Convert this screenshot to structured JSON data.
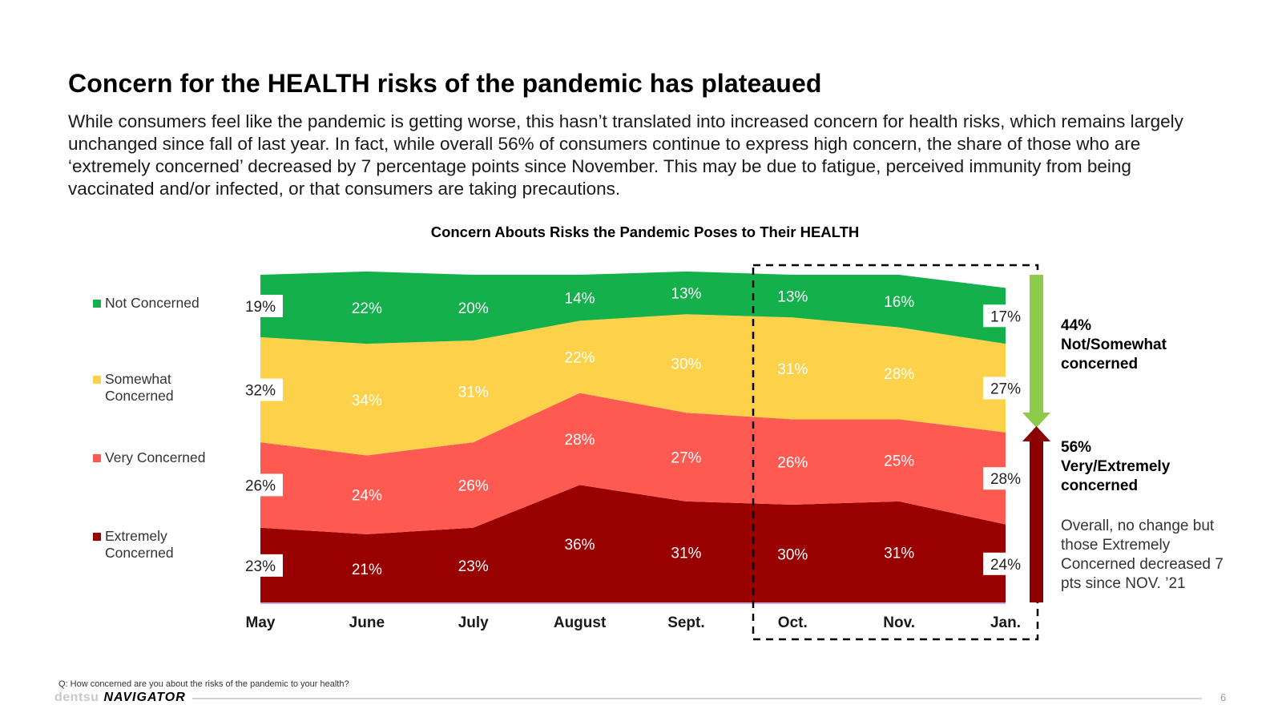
{
  "header": {
    "title": "Concern for the HEALTH risks of the pandemic has plateaued",
    "body": "While consumers feel like the pandemic is getting worse, this hasn’t translated into increased concern for health risks, which remains largely unchanged since fall of last year. In fact, while overall 56% of consumers continue to express high concern, the share of those who are ‘extremely concerned’ decreased by 7 percentage points since November. This may be due to fatigue, perceived immunity from being vaccinated and/or infected, or that consumers are taking precautions."
  },
  "chart_data": {
    "type": "area",
    "stacked": true,
    "title": "Concern Abouts Risks the Pandemic Poses to Their HEALTH",
    "categories": [
      "May",
      "June",
      "July",
      "August",
      "Sept.",
      "Oct.",
      "Nov.",
      "Jan."
    ],
    "series": [
      {
        "name": "Extremely Concerned",
        "color": "#990000",
        "values": [
          23,
          21,
          23,
          36,
          31,
          30,
          31,
          24
        ]
      },
      {
        "name": "Very Concerned",
        "color": "#ff5a52",
        "values": [
          26,
          24,
          26,
          28,
          27,
          26,
          25,
          28
        ]
      },
      {
        "name": "Somewhat Concerned",
        "color": "#fdd14a",
        "values": [
          32,
          34,
          31,
          22,
          30,
          31,
          28,
          27
        ]
      },
      {
        "name": "Not Concerned",
        "color": "#14b04c",
        "values": [
          19,
          22,
          20,
          14,
          13,
          13,
          16,
          17
        ]
      }
    ],
    "legend": [
      "Not Concerned",
      "Somewhat Concerned",
      "Very Concerned",
      "Extremely Concerned"
    ],
    "legend_position": "left",
    "value_suffix": "%",
    "ylim": [
      0,
      100
    ],
    "highlight_range": [
      "Oct.",
      "Jan."
    ]
  },
  "callouts": {
    "top": [
      "44%",
      "Not/Somewhat",
      "concerned"
    ],
    "top_color": "#8ccc4a",
    "bottom": [
      "56%",
      "Very/Extremely",
      "concerned"
    ],
    "bottom_color": "#8b0000",
    "note": "Overall, no change but those Extremely Concerned decreased 7 pts since NOV. ’21"
  },
  "footer": {
    "question": "Q: How concerned are you about the risks of the pandemic to your health?",
    "brand": "dentsu",
    "product": "NAVIGATOR",
    "page": "6"
  }
}
